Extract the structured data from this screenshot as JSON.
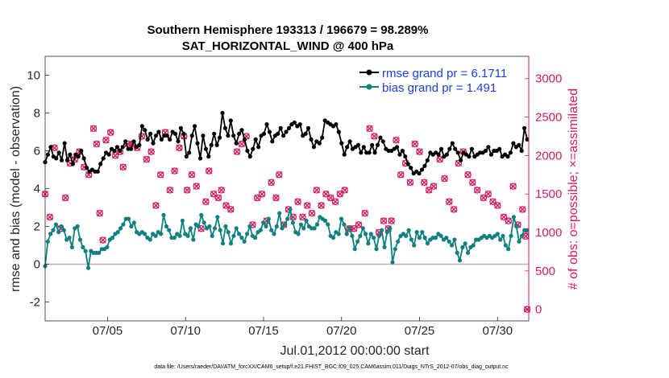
{
  "chart_data": {
    "type": "line",
    "title_line1": "Southern Hemisphere 193313 / 196679 = 98.289%",
    "title_line2": "SAT_HORIZONTAL_WIND @ 400 hPa",
    "xlabel": "Jul.01,2012 00:00:00 start",
    "ylabel_left": "rmse and bias (model - observation)",
    "ylabel_right": "# of obs: o=possible; ×=assimilated",
    "footnote": "data file: /Users/raeder/DAI/ATM_forcXX/CAM6_setup/f.e21.FHIST_BGC.f09_025.CAM6assim.011/Diags_NTrS_2012-07/obs_diag_output.nc",
    "x_range_days": [
      1,
      32
    ],
    "xticks": [
      {
        "day": 5,
        "label": "07/05"
      },
      {
        "day": 10,
        "label": "07/10"
      },
      {
        "day": 15,
        "label": "07/15"
      },
      {
        "day": 20,
        "label": "07/20"
      },
      {
        "day": 25,
        "label": "07/25"
      },
      {
        "day": 30,
        "label": "07/30"
      }
    ],
    "ylim_left": [
      -3,
      11
    ],
    "yticks_left": [
      -2,
      0,
      2,
      4,
      6,
      8,
      10
    ],
    "ylim_right": [
      -150,
      3290
    ],
    "yticks_right": [
      0,
      500,
      1000,
      1500,
      2000,
      2500,
      3000
    ],
    "zero_line": 0,
    "legend": [
      {
        "label": "rmse grand pr = 6.1711",
        "color": "#000000"
      },
      {
        "label": "bias grand pr = 1.491",
        "color": "#0f8080"
      }
    ],
    "colors": {
      "rmse": "#000000",
      "bias": "#0f8080",
      "obs": "#d81b60",
      "zero": "#c9a4b8",
      "legend_text": "#1a3fe0"
    },
    "rmse": [
      5.4,
      5.8,
      6.2,
      5.7,
      5.6,
      5.9,
      5.5,
      6.4,
      5.5,
      5.8,
      5.3,
      5.8,
      5.7,
      6.0,
      5.6,
      5.1,
      4.9,
      5.0,
      4.9,
      4.9,
      5.3,
      5.6,
      5.9,
      5.8,
      6.1,
      6.0,
      6.2,
      6.0,
      6.2,
      6.5,
      6.1,
      6.1,
      6.5,
      6.2,
      6.3,
      7.3,
      7.1,
      6.6,
      6.9,
      6.4,
      6.8,
      7.0,
      6.6,
      6.8,
      6.8,
      6.6,
      7.0,
      6.9,
      6.5,
      7.2,
      6.9,
      5.7,
      5.9,
      6.8,
      7.3,
      6.4,
      5.6,
      6.8,
      6.1,
      5.7,
      6.3,
      6.9,
      6.3,
      6.7,
      8.0,
      7.2,
      6.8,
      7.6,
      6.8,
      6.4,
      6.9,
      7.1,
      6.6,
      6.0,
      5.7,
      6.1,
      6.6,
      6.2,
      6.8,
      6.9,
      7.4,
      7.0,
      6.5,
      6.8,
      6.9,
      7.2,
      6.8,
      7.0,
      7.2,
      7.4,
      7.5,
      7.3,
      7.4,
      6.8,
      6.9,
      7.2,
      6.6,
      6.2,
      6.5,
      6.4,
      6.7,
      7.6,
      7.5,
      7.4,
      7.3,
      7.4,
      7.0,
      6.4,
      5.8,
      6.2,
      6.5,
      6.1,
      6.2,
      6.3,
      5.9,
      6.2,
      5.9,
      5.9,
      6.3,
      5.9,
      6.3,
      6.7,
      6.5,
      6.1,
      6.0,
      6.0,
      6.1,
      6.2,
      5.8,
      6.0,
      5.7,
      5.3,
      5.1,
      4.8,
      4.9,
      4.8,
      5.0,
      5.2,
      5.5,
      5.9,
      5.8,
      5.9,
      5.8,
      6.1,
      5.7,
      5.8,
      6.1,
      6.4,
      6.1,
      5.9,
      5.5,
      5.9,
      5.8,
      5.7,
      6.1,
      5.7,
      5.8,
      5.9,
      5.9,
      6.0,
      6.2,
      5.8,
      6.0,
      6.0,
      6.1,
      5.7,
      5.8,
      5.7,
      5.9,
      6.4,
      6.2,
      6.3,
      6.0,
      7.2,
      6.6
    ],
    "bias": [
      -0.1,
      1.2,
      1.6,
      1.8,
      2.1,
      1.7,
      2.0,
      1.8,
      1.3,
      1.4,
      0.9,
      1.9,
      2.0,
      1.3,
      0.9,
      0.7,
      -0.2,
      0.7,
      0.6,
      0.6,
      0.6,
      0.8,
      0.8,
      0.9,
      1.3,
      1.4,
      1.6,
      1.7,
      1.9,
      2.1,
      2.4,
      2.4,
      2.0,
      2.2,
      1.7,
      1.6,
      1.7,
      1.6,
      1.4,
      1.3,
      1.6,
      1.5,
      1.7,
      1.6,
      2.6,
      2.0,
      1.8,
      1.4,
      1.4,
      1.6,
      1.5,
      2.3,
      1.6,
      1.5,
      1.9,
      1.3,
      2.1,
      2.0,
      2.6,
      2.2,
      1.9,
      2.0,
      1.5,
      1.9,
      2.5,
      1.8,
      1.1,
      2.0,
      1.7,
      1.1,
      1.5,
      1.9,
      1.6,
      1.4,
      1.2,
      1.6,
      2.0,
      1.5,
      1.4,
      1.7,
      1.8,
      2.2,
      2.0,
      2.4,
      1.8,
      1.6,
      2.0,
      2.7,
      1.9,
      2.1,
      2.4,
      2.9,
      2.2,
      1.7,
      1.6,
      2.1,
      1.9,
      2.3,
      2.0,
      1.9,
      1.9,
      2.1,
      2.5,
      2.4,
      2.3,
      2.1,
      1.5,
      1.4,
      1.7,
      1.6,
      2.4,
      2.1,
      1.6,
      1.9,
      1.5,
      0.8,
      1.2,
      1.5,
      1.9,
      1.6,
      1.1,
      1.6,
      1.4,
      0.8,
      1.5,
      1.8,
      0.9,
      1.7,
      1.9,
      0.1,
      0.8,
      1.2,
      1.5,
      1.6,
      1.5,
      1.8,
      1.3,
      1.0,
      1.7,
      1.4,
      1.7,
      1.4,
      1.1,
      1.3,
      1.4,
      1.4,
      1.6,
      1.5,
      1.3,
      1.4,
      1.2,
      1.0,
      1.3,
      0.6,
      0.2,
      0.9,
      1.1,
      0.6,
      0.9,
      1.0,
      1.3,
      1.3,
      1.4,
      1.5,
      1.4,
      1.5,
      1.4,
      1.5,
      1.6,
      1.3,
      1.5,
      1.0,
      0.8,
      1.5,
      2.5,
      2.0,
      1.2,
      1.5,
      1.8,
      1.8
    ],
    "obs_possible": [
      [
        1.0,
        1500
      ],
      [
        1.3,
        1200
      ],
      [
        1.6,
        2100
      ],
      [
        2.0,
        1050
      ],
      [
        2.3,
        1450
      ],
      [
        2.6,
        1900
      ],
      [
        2.9,
        1950
      ],
      [
        3.2,
        2050
      ],
      [
        3.5,
        1850
      ],
      [
        3.8,
        1750
      ],
      [
        4.1,
        2350
      ],
      [
        4.3,
        2150
      ],
      [
        4.5,
        1250
      ],
      [
        4.7,
        900
      ],
      [
        4.9,
        2200
      ],
      [
        5.2,
        2300
      ],
      [
        5.5,
        2000
      ],
      [
        5.8,
        2050
      ],
      [
        6.0,
        1850
      ],
      [
        6.3,
        2150
      ],
      [
        6.6,
        2150
      ],
      [
        6.9,
        2100
      ],
      [
        7.2,
        2250
      ],
      [
        7.5,
        1950
      ],
      [
        7.8,
        2050
      ],
      [
        8.1,
        1350
      ],
      [
        8.4,
        1750
      ],
      [
        8.7,
        2300
      ],
      [
        9.0,
        1550
      ],
      [
        9.3,
        1800
      ],
      [
        9.6,
        2100
      ],
      [
        9.9,
        2250
      ],
      [
        10.1,
        1550
      ],
      [
        10.4,
        1750
      ],
      [
        10.7,
        1600
      ],
      [
        11.0,
        1050
      ],
      [
        11.3,
        1400
      ],
      [
        11.5,
        1800
      ],
      [
        11.8,
        1500
      ],
      [
        12.1,
        1450
      ],
      [
        12.3,
        1550
      ],
      [
        12.6,
        1350
      ],
      [
        12.9,
        1300
      ],
      [
        13.3,
        2050
      ],
      [
        13.6,
        2150
      ],
      [
        13.9,
        2250
      ],
      [
        14.3,
        1100
      ],
      [
        14.6,
        1450
      ],
      [
        14.9,
        1500
      ],
      [
        15.2,
        1150
      ],
      [
        15.5,
        1650
      ],
      [
        15.8,
        1450
      ],
      [
        16.0,
        1750
      ],
      [
        16.3,
        1100
      ],
      [
        16.6,
        1300
      ],
      [
        16.9,
        1200
      ],
      [
        17.2,
        1400
      ],
      [
        17.5,
        1200
      ],
      [
        17.8,
        1350
      ],
      [
        18.1,
        1250
      ],
      [
        18.4,
        1550
      ],
      [
        18.7,
        1350
      ],
      [
        19.0,
        1500
      ],
      [
        19.3,
        1450
      ],
      [
        19.6,
        1400
      ],
      [
        19.9,
        1500
      ],
      [
        20.2,
        1550
      ],
      [
        20.5,
        1050
      ],
      [
        20.8,
        1050
      ],
      [
        21.1,
        1100
      ],
      [
        21.5,
        1250
      ],
      [
        21.8,
        2350
      ],
      [
        22.1,
        2250
      ],
      [
        22.4,
        1000
      ],
      [
        22.7,
        1150
      ],
      [
        23.0,
        1050
      ],
      [
        23.2,
        1150
      ],
      [
        23.5,
        2200
      ],
      [
        23.8,
        1750
      ],
      [
        24.1,
        1900
      ],
      [
        24.4,
        1650
      ],
      [
        24.7,
        2150
      ],
      [
        25.0,
        2050
      ],
      [
        25.3,
        1650
      ],
      [
        25.6,
        1550
      ],
      [
        25.9,
        1600
      ],
      [
        26.3,
        1950
      ],
      [
        26.6,
        1700
      ],
      [
        26.9,
        1400
      ],
      [
        27.2,
        1300
      ],
      [
        27.5,
        1900
      ],
      [
        27.8,
        2050
      ],
      [
        28.1,
        1750
      ],
      [
        28.4,
        1650
      ],
      [
        28.7,
        1550
      ],
      [
        29.1,
        1450
      ],
      [
        29.4,
        1500
      ],
      [
        29.7,
        1400
      ],
      [
        30.0,
        1350
      ],
      [
        30.4,
        1200
      ],
      [
        30.7,
        1150
      ],
      [
        31.0,
        1600
      ],
      [
        31.3,
        1100
      ],
      [
        31.6,
        1300
      ],
      [
        31.8,
        950
      ],
      [
        31.9,
        0
      ]
    ],
    "obs_assimilated": [
      [
        1.0,
        1500
      ],
      [
        1.3,
        1200
      ],
      [
        1.6,
        2100
      ],
      [
        2.0,
        1050
      ],
      [
        2.3,
        1450
      ],
      [
        2.6,
        1900
      ],
      [
        2.9,
        1950
      ],
      [
        3.2,
        2050
      ],
      [
        3.5,
        1850
      ],
      [
        3.8,
        1750
      ],
      [
        4.1,
        2350
      ],
      [
        4.3,
        2150
      ],
      [
        4.5,
        1250
      ],
      [
        4.7,
        900
      ],
      [
        4.9,
        2200
      ],
      [
        5.2,
        2300
      ],
      [
        5.5,
        2000
      ],
      [
        5.8,
        2050
      ],
      [
        6.0,
        1850
      ],
      [
        6.3,
        2150
      ],
      [
        6.6,
        2150
      ],
      [
        6.9,
        2100
      ],
      [
        7.2,
        2250
      ],
      [
        7.5,
        1950
      ],
      [
        7.8,
        2050
      ],
      [
        8.1,
        1350
      ],
      [
        8.4,
        1750
      ],
      [
        8.7,
        2300
      ],
      [
        9.0,
        1550
      ],
      [
        9.3,
        1800
      ],
      [
        9.6,
        2100
      ],
      [
        9.9,
        2250
      ],
      [
        10.1,
        1550
      ],
      [
        10.4,
        1750
      ],
      [
        10.7,
        1600
      ],
      [
        11.0,
        1050
      ],
      [
        11.3,
        1400
      ],
      [
        11.5,
        1800
      ],
      [
        11.8,
        1500
      ],
      [
        12.1,
        1450
      ],
      [
        12.3,
        1550
      ],
      [
        12.6,
        1350
      ],
      [
        12.9,
        1300
      ],
      [
        13.3,
        2050
      ],
      [
        13.6,
        2150
      ],
      [
        13.9,
        2250
      ],
      [
        14.3,
        1100
      ],
      [
        14.6,
        1450
      ],
      [
        14.9,
        1500
      ],
      [
        15.2,
        1150
      ],
      [
        15.5,
        1650
      ],
      [
        15.8,
        1450
      ],
      [
        16.0,
        1750
      ],
      [
        16.3,
        1100
      ],
      [
        16.6,
        1300
      ],
      [
        16.9,
        1200
      ],
      [
        17.2,
        1400
      ],
      [
        17.5,
        1200
      ],
      [
        17.8,
        1350
      ],
      [
        18.1,
        1250
      ],
      [
        18.4,
        1550
      ],
      [
        18.7,
        1350
      ],
      [
        19.0,
        1500
      ],
      [
        19.3,
        1450
      ],
      [
        19.6,
        1400
      ],
      [
        19.9,
        1500
      ],
      [
        20.2,
        1550
      ],
      [
        20.5,
        1050
      ],
      [
        20.8,
        1050
      ],
      [
        21.1,
        1100
      ],
      [
        21.5,
        1250
      ],
      [
        21.8,
        2350
      ],
      [
        22.1,
        2250
      ],
      [
        22.4,
        1000
      ],
      [
        22.7,
        1150
      ],
      [
        23.0,
        1050
      ],
      [
        23.2,
        1150
      ],
      [
        23.5,
        2200
      ],
      [
        23.8,
        1750
      ],
      [
        24.1,
        1900
      ],
      [
        24.4,
        1650
      ],
      [
        24.7,
        2150
      ],
      [
        25.0,
        2050
      ],
      [
        25.3,
        1650
      ],
      [
        25.6,
        1550
      ],
      [
        25.9,
        1600
      ],
      [
        26.3,
        1950
      ],
      [
        26.6,
        1700
      ],
      [
        26.9,
        1400
      ],
      [
        27.2,
        1300
      ],
      [
        27.5,
        1900
      ],
      [
        27.8,
        2050
      ],
      [
        28.1,
        1750
      ],
      [
        28.4,
        1650
      ],
      [
        28.7,
        1550
      ],
      [
        29.1,
        1450
      ],
      [
        29.4,
        1500
      ],
      [
        29.7,
        1400
      ],
      [
        30.0,
        1350
      ],
      [
        30.4,
        1200
      ],
      [
        30.7,
        1150
      ],
      [
        31.0,
        1600
      ],
      [
        31.3,
        1100
      ],
      [
        31.6,
        1300
      ],
      [
        31.8,
        950
      ],
      [
        31.9,
        0
      ]
    ]
  }
}
